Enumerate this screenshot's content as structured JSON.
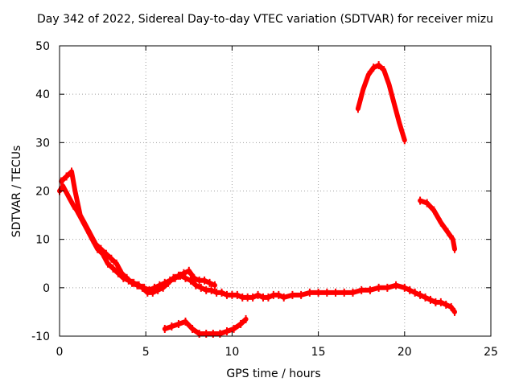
{
  "chart_data": {
    "type": "line",
    "title": "Day 342 of 2022, Sidereal Day-to-day VTEC variation (SDTVAR) for receiver mizu",
    "xlabel": "GPS time / hours",
    "ylabel": "SDTVAR / TECUs",
    "xlim": [
      0,
      25
    ],
    "ylim": [
      -10,
      50
    ],
    "xticks": [
      0,
      5,
      10,
      15,
      20,
      25
    ],
    "yticks": [
      -10,
      0,
      10,
      20,
      30,
      40,
      50
    ],
    "grid": true,
    "series": [
      {
        "name": "main-decay-band",
        "color": "#ff0000",
        "x": [
          0.0,
          0.2,
          0.5,
          0.8,
          1.0,
          1.3,
          1.6,
          1.9,
          2.2,
          2.5,
          2.8,
          3.1,
          3.4,
          3.7,
          4.0,
          4.3,
          4.6,
          4.9,
          5.2,
          5.5,
          5.8,
          6.1,
          6.4,
          6.7,
          7.0,
          7.3,
          7.6,
          7.9,
          8.2,
          8.5,
          8.8,
          9.1,
          9.4,
          9.7,
          10.0,
          10.3,
          10.6,
          10.9,
          11.2,
          11.5,
          11.8,
          12.1,
          12.4,
          12.7,
          13.0,
          13.5,
          14.0,
          14.5,
          15.0,
          15.5,
          16.0,
          16.5,
          17.0,
          17.5,
          18.0,
          18.5,
          19.0,
          19.5,
          20.0,
          20.3,
          20.6,
          20.9,
          21.2,
          21.5,
          21.8,
          22.1,
          22.4,
          22.7,
          22.9
        ],
        "y": [
          20,
          21,
          19,
          17,
          16,
          14,
          12,
          10,
          8,
          7,
          5,
          4,
          3,
          2,
          1.5,
          1,
          0.5,
          0,
          -0.5,
          0,
          0.5,
          1,
          1.5,
          2,
          2.5,
          2,
          1.5,
          0.5,
          0,
          -0.5,
          -0.5,
          -1,
          -1,
          -1.5,
          -1.5,
          -1.5,
          -2,
          -2,
          -2,
          -1.5,
          -2,
          -2,
          -1.5,
          -1.5,
          -2,
          -1.5,
          -1.5,
          -1,
          -1,
          -1,
          -1,
          -1,
          -1,
          -0.5,
          -0.5,
          0,
          0,
          0.5,
          0,
          -0.5,
          -1,
          -1.5,
          -2,
          -2.5,
          -3,
          -3,
          -3.5,
          -4,
          -5
        ]
      },
      {
        "name": "upper-decay-band",
        "color": "#ff0000",
        "x": [
          0.1,
          0.4,
          0.7,
          0.9,
          1.2,
          1.5,
          1.8,
          2.1,
          2.4,
          2.7,
          3.0,
          3.3,
          3.6,
          3.9,
          4.2,
          4.5,
          4.8,
          5.1,
          5.4,
          5.7,
          6.0,
          6.3,
          6.6,
          6.9,
          7.2,
          7.5,
          7.8,
          8.1,
          8.4,
          8.7,
          9.0
        ],
        "y": [
          22,
          23,
          24,
          20,
          15,
          13,
          11,
          9,
          8,
          7,
          6,
          5,
          3,
          2,
          1,
          0.5,
          0,
          -1,
          -1,
          -0.5,
          0,
          1,
          2,
          2.5,
          3,
          3.5,
          2,
          1.5,
          1.5,
          1,
          0.5
        ]
      },
      {
        "name": "low-dip-segment",
        "color": "#ff0000",
        "x": [
          6.1,
          6.5,
          6.9,
          7.3,
          7.7,
          8.1,
          8.5,
          8.9,
          9.3,
          9.7,
          10.1,
          10.5,
          10.8
        ],
        "y": [
          -8.5,
          -8,
          -7.5,
          -7,
          -8.5,
          -9.5,
          -9.5,
          -9.5,
          -9.5,
          -9,
          -8.5,
          -7.5,
          -6.5
        ]
      },
      {
        "name": "evening-arc",
        "color": "#ff0000",
        "x": [
          17.3,
          17.6,
          17.9,
          18.2,
          18.5,
          18.8,
          19.1,
          19.4,
          19.7,
          20.0
        ],
        "y": [
          37,
          41,
          44,
          45.5,
          46,
          45,
          42,
          38,
          34,
          30.5
        ]
      },
      {
        "name": "late-descending-segment",
        "color": "#ff0000",
        "x": [
          20.9,
          21.3,
          21.7,
          22.1,
          22.5,
          22.8,
          22.9
        ],
        "y": [
          18,
          17.5,
          16,
          13.5,
          11.5,
          10,
          8
        ]
      }
    ]
  }
}
